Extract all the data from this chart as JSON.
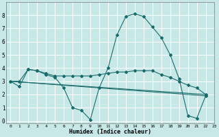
{
  "title": "",
  "xlabel": "Humidex (Indice chaleur)",
  "ylabel": "",
  "bg_color": "#c8e8e8",
  "grid_color": "#ffffff",
  "line_color": "#1a6b6b",
  "xlim": [
    -0.5,
    23
  ],
  "ylim": [
    -0.2,
    9
  ],
  "xticks": [
    0,
    1,
    2,
    3,
    4,
    5,
    6,
    7,
    8,
    9,
    10,
    11,
    12,
    13,
    14,
    15,
    16,
    17,
    18,
    19,
    20,
    21,
    22,
    23
  ],
  "yticks": [
    0,
    1,
    2,
    3,
    4,
    5,
    6,
    7,
    8
  ],
  "series": [
    {
      "x": [
        0,
        1,
        2,
        3,
        4,
        5,
        6,
        7,
        8,
        9,
        10,
        11,
        12,
        13,
        14,
        15,
        16,
        17,
        18,
        19,
        20,
        21,
        22
      ],
      "y": [
        3.0,
        2.6,
        3.9,
        3.8,
        3.5,
        3.3,
        2.5,
        1.0,
        0.8,
        0.1,
        2.5,
        4.0,
        6.5,
        7.9,
        8.1,
        7.9,
        7.1,
        6.3,
        5.0,
        3.2,
        0.4,
        0.2,
        1.9
      ]
    },
    {
      "x": [
        0,
        1,
        2,
        3,
        4,
        5,
        6,
        7,
        8,
        9,
        10,
        11,
        12,
        13,
        14,
        15,
        16,
        17,
        18,
        19,
        20,
        21,
        22
      ],
      "y": [
        3.0,
        3.0,
        3.9,
        3.8,
        3.6,
        3.4,
        3.4,
        3.4,
        3.4,
        3.4,
        3.5,
        3.6,
        3.7,
        3.7,
        3.8,
        3.8,
        3.8,
        3.5,
        3.3,
        3.0,
        2.7,
        2.5,
        2.0
      ]
    },
    {
      "x": [
        0,
        22
      ],
      "y": [
        3.0,
        2.0
      ]
    },
    {
      "comment": "diagonal line 2 - from 0,3 to 22,1.9",
      "x": [
        0,
        22
      ],
      "y": [
        3.0,
        1.9
      ]
    }
  ]
}
